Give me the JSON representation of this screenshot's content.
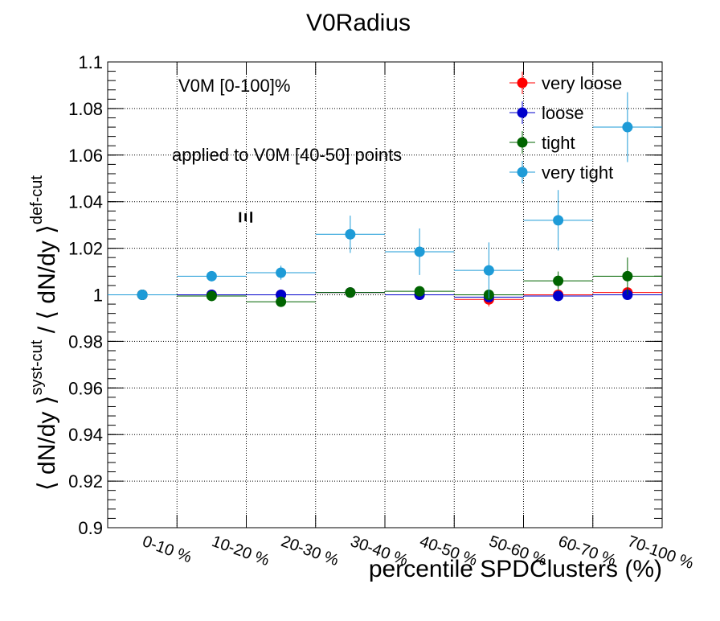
{
  "chart_data": {
    "type": "scatter",
    "title": "V0Radius",
    "xlabel": "percentile SPDClusters (%)",
    "ylabel": {
      "base1": "⟨ dN/dy ⟩",
      "sup1": "syst-cut",
      "sep": " / ",
      "base2": "⟨ dN/dy ⟩",
      "sup2": "def-cut"
    },
    "categories": [
      "0-10 %",
      "10-20 %",
      "20-30 %",
      "30-40 %",
      "40-50 %",
      "50-60 %",
      "60-70 %",
      "70-100 %"
    ],
    "ylim": [
      0.9,
      1.1
    ],
    "yticks": [
      "0.9",
      "0.92",
      "0.94",
      "0.96",
      "0.98",
      "1",
      "1.02",
      "1.04",
      "1.06",
      "1.08",
      "1.1"
    ],
    "grid": true,
    "legend_position": "top-right",
    "annotations": {
      "mult": "V0M [0-100]%",
      "applied": "applied to V0M [40-50] points",
      "particle": "Ξ"
    },
    "series": [
      {
        "name": "very loose",
        "color": "#ff0000",
        "values": [
          1.0,
          1.0,
          1.0,
          1.001,
          1.0,
          0.998,
          1.0,
          1.001
        ],
        "errors": [
          0.001,
          0.001,
          0.001,
          0.001,
          0.001,
          0.003,
          0.001,
          0.001
        ]
      },
      {
        "name": "loose",
        "color": "#0000cc",
        "values": [
          1.0,
          1.0,
          1.0,
          1.001,
          1.0,
          0.999,
          0.9995,
          1.0
        ],
        "errors": [
          0.001,
          0.001,
          0.001,
          0.001,
          0.001,
          0.001,
          0.001,
          0.001
        ]
      },
      {
        "name": "tight",
        "color": "#006400",
        "values": [
          1.0,
          0.9995,
          0.997,
          1.001,
          1.0015,
          1.0,
          1.006,
          1.008
        ],
        "errors": [
          0.001,
          0.001,
          0.001,
          0.002,
          0.002,
          0.002,
          0.004,
          0.008
        ]
      },
      {
        "name": "very tight",
        "color": "#1e9bd7",
        "values": [
          1.0,
          1.008,
          1.0095,
          1.026,
          1.0185,
          1.0105,
          1.032,
          1.072
        ],
        "errors": [
          0.001,
          0.002,
          0.003,
          0.008,
          0.01,
          0.012,
          0.013,
          0.015
        ]
      }
    ]
  }
}
